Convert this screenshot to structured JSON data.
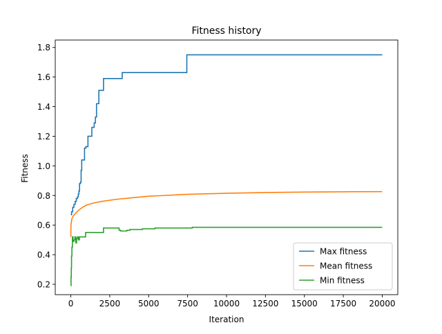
{
  "chart_data": {
    "type": "line",
    "title": "Fitness history",
    "xlabel": "Iteration",
    "ylabel": "Fitness",
    "xlim": [
      -1000,
      21000
    ],
    "ylim": [
      0.13,
      1.85
    ],
    "xticks": [
      0,
      2500,
      5000,
      7500,
      10000,
      12500,
      15000,
      17500,
      20000
    ],
    "xtick_labels": [
      "0",
      "2500",
      "5000",
      "7500",
      "10000",
      "12500",
      "15000",
      "17500",
      "20000"
    ],
    "yticks": [
      0.2,
      0.4,
      0.6,
      0.8,
      1.0,
      1.2,
      1.4,
      1.6,
      1.8
    ],
    "ytick_labels": [
      "0.2",
      "0.4",
      "0.6",
      "0.8",
      "1.0",
      "1.2",
      "1.4",
      "1.6",
      "1.8"
    ],
    "grid": false,
    "legend_position": "bottom-right",
    "series": [
      {
        "name": "Max fitness",
        "color": "#1f77b4",
        "step": true,
        "points": [
          [
            0,
            0.67
          ],
          [
            50,
            0.69
          ],
          [
            120,
            0.72
          ],
          [
            200,
            0.74
          ],
          [
            280,
            0.76
          ],
          [
            350,
            0.78
          ],
          [
            430,
            0.79
          ],
          [
            480,
            0.81
          ],
          [
            520,
            0.83
          ],
          [
            560,
            0.88
          ],
          [
            620,
            0.89
          ],
          [
            660,
            0.97
          ],
          [
            700,
            1.04
          ],
          [
            880,
            1.12
          ],
          [
            970,
            1.13
          ],
          [
            1100,
            1.2
          ],
          [
            1350,
            1.26
          ],
          [
            1500,
            1.29
          ],
          [
            1580,
            1.33
          ],
          [
            1650,
            1.42
          ],
          [
            1800,
            1.51
          ],
          [
            2100,
            1.59
          ],
          [
            3300,
            1.63
          ],
          [
            7450,
            1.75
          ],
          [
            20000,
            1.75
          ]
        ]
      },
      {
        "name": "Mean fitness",
        "color": "#ff7f0e",
        "step": false,
        "points": [
          [
            0,
            0.52
          ],
          [
            10,
            0.6
          ],
          [
            60,
            0.64
          ],
          [
            150,
            0.66
          ],
          [
            300,
            0.68
          ],
          [
            500,
            0.7
          ],
          [
            750,
            0.72
          ],
          [
            1000,
            0.735
          ],
          [
            1500,
            0.75
          ],
          [
            2000,
            0.76
          ],
          [
            3000,
            0.775
          ],
          [
            4000,
            0.785
          ],
          [
            5000,
            0.795
          ],
          [
            6000,
            0.8
          ],
          [
            7500,
            0.808
          ],
          [
            10000,
            0.815
          ],
          [
            12500,
            0.82
          ],
          [
            15000,
            0.823
          ],
          [
            17500,
            0.825
          ],
          [
            20000,
            0.826
          ]
        ]
      },
      {
        "name": "Min fitness",
        "color": "#2ca02c",
        "step": true,
        "points": [
          [
            0,
            0.19
          ],
          [
            15,
            0.25
          ],
          [
            30,
            0.31
          ],
          [
            45,
            0.39
          ],
          [
            70,
            0.45
          ],
          [
            100,
            0.52
          ],
          [
            140,
            0.49
          ],
          [
            200,
            0.5
          ],
          [
            260,
            0.52
          ],
          [
            320,
            0.48
          ],
          [
            370,
            0.51
          ],
          [
            430,
            0.52
          ],
          [
            480,
            0.5
          ],
          [
            550,
            0.52
          ],
          [
            620,
            0.52
          ],
          [
            700,
            0.52
          ],
          [
            950,
            0.55
          ],
          [
            2100,
            0.58
          ],
          [
            3000,
            0.58
          ],
          [
            3100,
            0.565
          ],
          [
            3200,
            0.56
          ],
          [
            3400,
            0.56
          ],
          [
            3600,
            0.565
          ],
          [
            3800,
            0.57
          ],
          [
            4600,
            0.575
          ],
          [
            5400,
            0.58
          ],
          [
            6500,
            0.58
          ],
          [
            7800,
            0.585
          ],
          [
            20000,
            0.585
          ]
        ]
      }
    ]
  }
}
